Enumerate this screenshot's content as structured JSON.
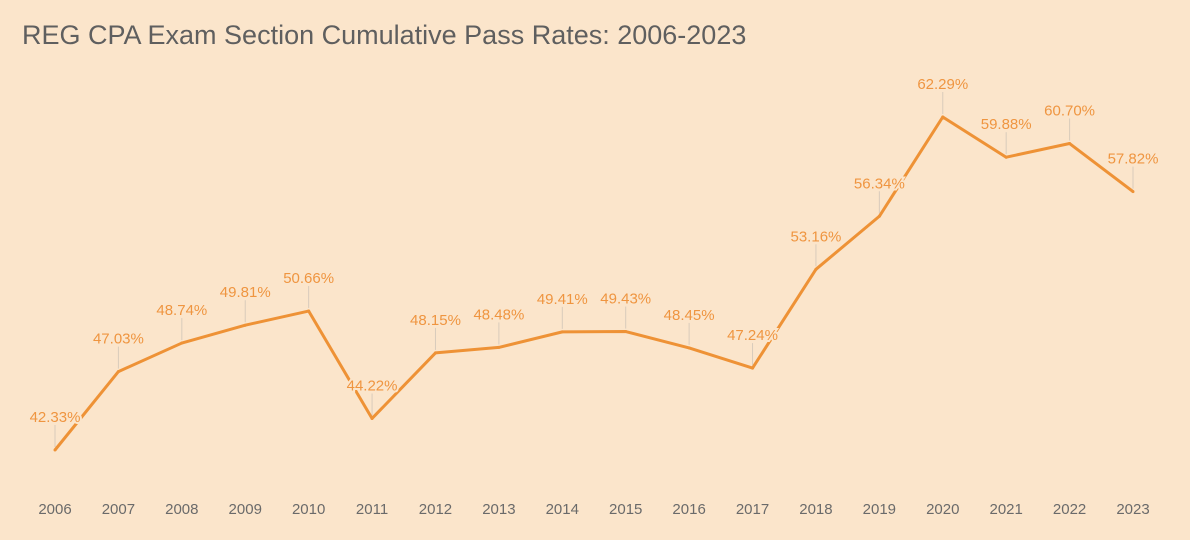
{
  "chart_data": {
    "type": "line",
    "title": "REG CPA Exam Section Cumulative Pass Rates: 2006-2023",
    "xlabel": "",
    "ylabel": "",
    "categories": [
      "2006",
      "2007",
      "2008",
      "2009",
      "2010",
      "2011",
      "2012",
      "2013",
      "2014",
      "2015",
      "2016",
      "2017",
      "2018",
      "2019",
      "2020",
      "2021",
      "2022",
      "2023"
    ],
    "values": [
      42.33,
      47.03,
      48.74,
      49.81,
      50.66,
      44.22,
      48.15,
      48.48,
      49.41,
      49.43,
      48.45,
      47.24,
      53.16,
      56.34,
      62.29,
      59.88,
      60.7,
      57.82
    ],
    "data_labels": [
      "42.33%",
      "47.03%",
      "48.74%",
      "49.81%",
      "50.66%",
      "44.22%",
      "48.15%",
      "48.48%",
      "49.41%",
      "49.43%",
      "48.45%",
      "47.24%",
      "53.16%",
      "56.34%",
      "62.29%",
      "59.88%",
      "60.70%",
      "57.82%"
    ],
    "grid": false,
    "legend": "none",
    "colors": {
      "line": "#ee9236",
      "labels": "#ef9540",
      "leader": "#d8cbbb",
      "background": "#fbe5cb",
      "axis_text": "#6a6a6a"
    }
  }
}
